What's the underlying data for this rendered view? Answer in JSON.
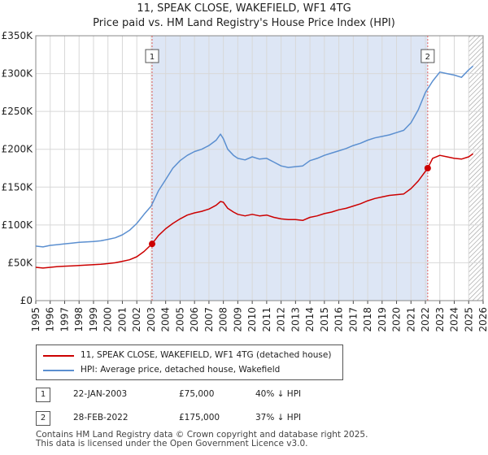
{
  "chart_data": {
    "type": "line",
    "title": "11, SPEAK CLOSE, WAKEFIELD, WF1 4TG",
    "subtitle": "Price paid vs. HM Land Registry's House Price Index (HPI)",
    "x_ticks": [
      "1995",
      "1996",
      "1997",
      "1998",
      "1999",
      "2000",
      "2001",
      "2002",
      "2003",
      "2004",
      "2005",
      "2006",
      "2007",
      "2008",
      "2009",
      "2010",
      "2011",
      "2012",
      "2013",
      "2014",
      "2015",
      "2016",
      "2017",
      "2018",
      "2019",
      "2020",
      "2021",
      "2022",
      "2023",
      "2024",
      "2025",
      "2026"
    ],
    "y_ticks": [
      "£0",
      "£50K",
      "£100K",
      "£150K",
      "£200K",
      "£250K",
      "£300K",
      "£350K"
    ],
    "xlim": [
      1995,
      2026
    ],
    "ylim": [
      0,
      350000
    ],
    "grid": true,
    "colors": {
      "property": "#cc0000",
      "hpi": "#5b8fd0",
      "shade": "#dde6f5",
      "vline": "#e06060"
    },
    "series": [
      {
        "name": "11, SPEAK CLOSE, WAKEFIELD, WF1 4TG (detached house)",
        "x": [
          1995.0,
          1995.5,
          1996.0,
          1996.5,
          1997.0,
          1997.5,
          1998.0,
          1998.5,
          1999.0,
          1999.5,
          2000.0,
          2000.5,
          2001.0,
          2001.5,
          2002.0,
          2002.5,
          2003.06,
          2003.5,
          2004.0,
          2004.5,
          2005.0,
          2005.5,
          2006.0,
          2006.5,
          2007.0,
          2007.5,
          2007.8,
          2008.0,
          2008.3,
          2008.7,
          2009.0,
          2009.5,
          2010.0,
          2010.5,
          2011.0,
          2011.5,
          2012.0,
          2012.5,
          2013.0,
          2013.5,
          2014.0,
          2014.5,
          2015.0,
          2015.5,
          2016.0,
          2016.5,
          2017.0,
          2017.5,
          2018.0,
          2018.5,
          2019.0,
          2019.5,
          2020.0,
          2020.5,
          2021.0,
          2021.5,
          2022.16,
          2022.5,
          2023.0,
          2023.5,
          2024.0,
          2024.5,
          2025.0,
          2025.3
        ],
        "values": [
          44000,
          43000,
          44000,
          45000,
          45500,
          46000,
          46500,
          47000,
          47500,
          48000,
          49000,
          50000,
          52000,
          54000,
          58000,
          65000,
          75000,
          86000,
          95000,
          102000,
          108000,
          113000,
          116000,
          118000,
          121000,
          126000,
          131000,
          130000,
          122000,
          117000,
          114000,
          112000,
          114000,
          112000,
          113000,
          110000,
          108000,
          107000,
          107000,
          106000,
          110000,
          112000,
          115000,
          117000,
          120000,
          122000,
          125000,
          128000,
          132000,
          135000,
          137000,
          139000,
          140000,
          141000,
          148000,
          158000,
          175000,
          188000,
          192000,
          190000,
          188000,
          187000,
          190000,
          194000
        ]
      },
      {
        "name": "HPI: Average price, detached house, Wakefield",
        "x": [
          1995.0,
          1995.5,
          1996.0,
          1996.5,
          1997.0,
          1997.5,
          1998.0,
          1998.5,
          1999.0,
          1999.5,
          2000.0,
          2000.5,
          2001.0,
          2001.5,
          2002.0,
          2002.5,
          2003.0,
          2003.5,
          2004.0,
          2004.5,
          2005.0,
          2005.5,
          2006.0,
          2006.5,
          2007.0,
          2007.5,
          2007.8,
          2008.0,
          2008.3,
          2008.7,
          2009.0,
          2009.5,
          2010.0,
          2010.5,
          2011.0,
          2011.5,
          2012.0,
          2012.5,
          2013.0,
          2013.5,
          2014.0,
          2014.5,
          2015.0,
          2015.5,
          2016.0,
          2016.5,
          2017.0,
          2017.5,
          2018.0,
          2018.5,
          2019.0,
          2019.5,
          2020.0,
          2020.5,
          2021.0,
          2021.5,
          2022.0,
          2022.5,
          2023.0,
          2023.5,
          2024.0,
          2024.5,
          2025.0,
          2025.3
        ],
        "values": [
          72000,
          71000,
          73000,
          74000,
          75000,
          76000,
          77000,
          77500,
          78000,
          79000,
          81000,
          83000,
          87000,
          93000,
          102000,
          114000,
          125000,
          145000,
          160000,
          175000,
          185000,
          192000,
          197000,
          200000,
          205000,
          212000,
          220000,
          214000,
          200000,
          192000,
          188000,
          186000,
          190000,
          187000,
          188000,
          183000,
          178000,
          176000,
          177000,
          178000,
          185000,
          188000,
          192000,
          195000,
          198000,
          201000,
          205000,
          208000,
          212000,
          215000,
          217000,
          219000,
          222000,
          225000,
          235000,
          252000,
          275000,
          290000,
          302000,
          300000,
          298000,
          295000,
          305000,
          310000
        ]
      }
    ],
    "annotations": [
      {
        "label": "1",
        "x": 2003.06,
        "y": 75000
      },
      {
        "label": "2",
        "x": 2022.16,
        "y": 175000
      }
    ],
    "shaded_ranges": [
      [
        2003.06,
        2022.16
      ]
    ],
    "hatched_from": 2025.0
  },
  "page": {
    "title": "11, SPEAK CLOSE, WAKEFIELD, WF1 4TG",
    "subtitle": "Price paid vs. HM Land Registry's House Price Index (HPI)"
  },
  "legend": {
    "property": "11, SPEAK CLOSE, WAKEFIELD, WF1 4TG (detached house)",
    "hpi": "HPI: Average price, detached house, Wakefield"
  },
  "sales": [
    {
      "num": "1",
      "date": "22-JAN-2003",
      "price": "£75,000",
      "hpi": "40% ↓ HPI"
    },
    {
      "num": "2",
      "date": "28-FEB-2022",
      "price": "£175,000",
      "hpi": "37% ↓ HPI"
    }
  ],
  "footer": "Contains HM Land Registry data © Crown copyright and database right 2025.\nThis data is licensed under the Open Government Licence v3.0."
}
